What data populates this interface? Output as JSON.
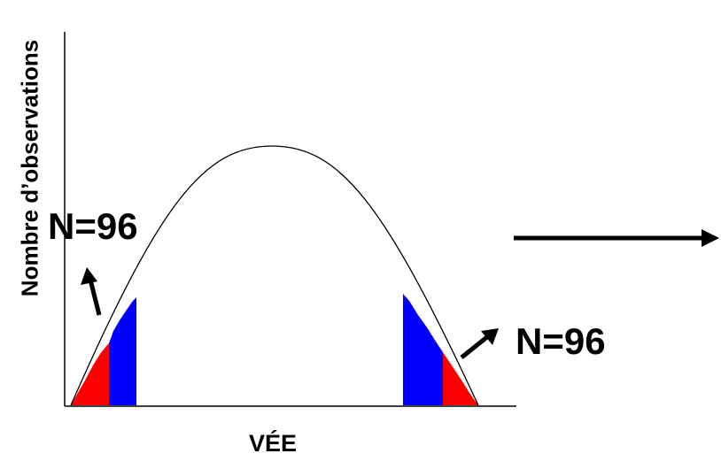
{
  "axes": {
    "y_label": "Nombre d’observations",
    "x_label": "VÉE"
  },
  "annotations": {
    "left_count": "N=96",
    "right_count": "N=96"
  },
  "colors": {
    "curve": "#000000",
    "axis": "#000000",
    "outer_tail": "#ff0000",
    "inner_tail": "#0000ff",
    "arrow": "#000000"
  },
  "diagram": {
    "shape": "bell-curve",
    "highlighted_regions": [
      "left-tail",
      "right-tail"
    ],
    "tail_bands": [
      "outer",
      "inner"
    ]
  }
}
